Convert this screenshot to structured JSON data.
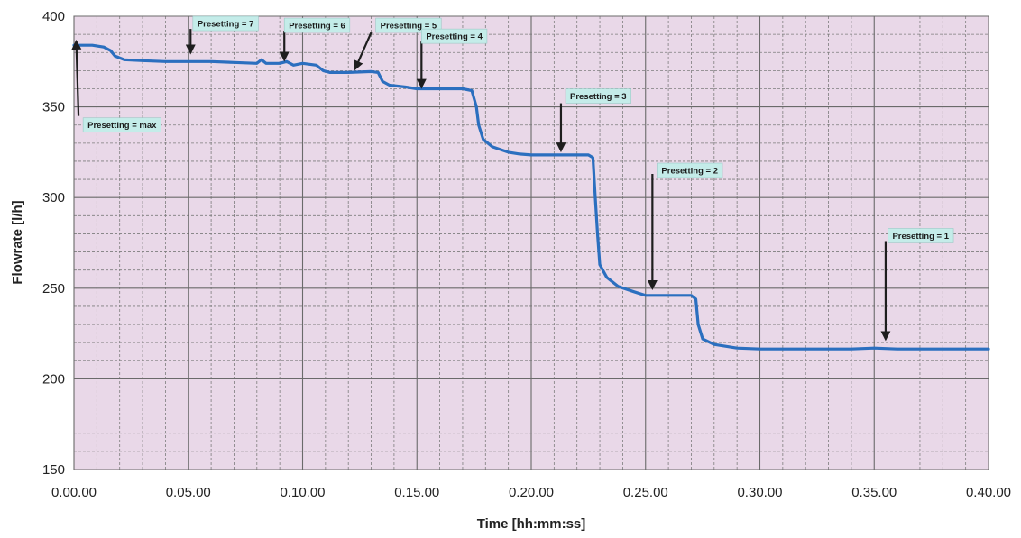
{
  "chart_data": {
    "type": "line",
    "title": "",
    "xlabel": "Time [hh:mm:ss]",
    "ylabel": "Flowrate [l/h]",
    "xlim": [
      0,
      40
    ],
    "ylim": [
      150,
      400
    ],
    "x_ticks": [
      {
        "value": 0,
        "label": "0.00.00"
      },
      {
        "value": 5,
        "label": "0.05.00"
      },
      {
        "value": 10,
        "label": "0.10.00"
      },
      {
        "value": 15,
        "label": "0.15.00"
      },
      {
        "value": 20,
        "label": "0.20.00"
      },
      {
        "value": 25,
        "label": "0.25.00"
      },
      {
        "value": 30,
        "label": "0.30.00"
      },
      {
        "value": 35,
        "label": "0.35.00"
      },
      {
        "value": 40,
        "label": "0.40.00"
      }
    ],
    "y_ticks": [
      {
        "value": 150,
        "label": "150"
      },
      {
        "value": 200,
        "label": "200"
      },
      {
        "value": 250,
        "label": "250"
      },
      {
        "value": 300,
        "label": "300"
      },
      {
        "value": 350,
        "label": "350"
      },
      {
        "value": 400,
        "label": "400"
      }
    ],
    "grid": true,
    "series": [
      {
        "color": "#2b6fbf",
        "points": [
          [
            0,
            384
          ],
          [
            0.8,
            384
          ],
          [
            1.3,
            383
          ],
          [
            1.6,
            381
          ],
          [
            1.8,
            378
          ],
          [
            2.2,
            376
          ],
          [
            3,
            375.5
          ],
          [
            4,
            375
          ],
          [
            5,
            375
          ],
          [
            6,
            375
          ],
          [
            7,
            374.5
          ],
          [
            8,
            374
          ],
          [
            8.2,
            376
          ],
          [
            8.4,
            374
          ],
          [
            9,
            374
          ],
          [
            9.3,
            375
          ],
          [
            9.6,
            373
          ],
          [
            10,
            374
          ],
          [
            10.6,
            373
          ],
          [
            10.9,
            370
          ],
          [
            11.2,
            369
          ],
          [
            12,
            369
          ],
          [
            13,
            369.5
          ],
          [
            13.3,
            369
          ],
          [
            13.5,
            364
          ],
          [
            13.8,
            362
          ],
          [
            14.5,
            361
          ],
          [
            15,
            360
          ],
          [
            16,
            360
          ],
          [
            17,
            360
          ],
          [
            17.4,
            359
          ],
          [
            17.6,
            350
          ],
          [
            17.7,
            340
          ],
          [
            17.9,
            332
          ],
          [
            18.3,
            328
          ],
          [
            19,
            325
          ],
          [
            19.5,
            324
          ],
          [
            20,
            323.5
          ],
          [
            21,
            323.5
          ],
          [
            22,
            323.5
          ],
          [
            22.5,
            323.5
          ],
          [
            22.7,
            322
          ],
          [
            22.8,
            300
          ],
          [
            22.9,
            280
          ],
          [
            23.0,
            263
          ],
          [
            23.3,
            256
          ],
          [
            23.8,
            251
          ],
          [
            24.5,
            248
          ],
          [
            25,
            246
          ],
          [
            26,
            246
          ],
          [
            27,
            246
          ],
          [
            27.2,
            244
          ],
          [
            27.3,
            230
          ],
          [
            27.5,
            222
          ],
          [
            28,
            219
          ],
          [
            29,
            217
          ],
          [
            30,
            216.5
          ],
          [
            32,
            216.5
          ],
          [
            34,
            216.5
          ],
          [
            35,
            217
          ],
          [
            36,
            216.5
          ],
          [
            38,
            216.5
          ],
          [
            40,
            216.5
          ]
        ]
      }
    ],
    "annotations": [
      {
        "label": "Presetting = max",
        "point": [
          0.1,
          386
        ],
        "box_at": [
          0.4,
          340
        ],
        "tail": [
          0.2,
          345
        ]
      },
      {
        "label": "Presetting = 7",
        "point": [
          5.1,
          380
        ],
        "box_at": [
          5.2,
          396
        ],
        "tail": [
          5.1,
          393
        ]
      },
      {
        "label": "Presetting = 6",
        "point": [
          9.2,
          376
        ],
        "box_at": [
          9.2,
          395
        ],
        "tail": [
          9.2,
          392
        ]
      },
      {
        "label": "Presetting = 5",
        "point": [
          12.3,
          371
        ],
        "box_at": [
          13.2,
          395
        ],
        "tail": [
          13.0,
          391
        ]
      },
      {
        "label": "Presetting = 4",
        "point": [
          15.2,
          361
        ],
        "box_at": [
          15.2,
          389
        ],
        "tail": [
          15.2,
          386
        ]
      },
      {
        "label": "Presetting = 3",
        "point": [
          21.3,
          326
        ],
        "box_at": [
          21.5,
          356
        ],
        "tail": [
          21.3,
          352
        ]
      },
      {
        "label": "Presetting = 2",
        "point": [
          25.3,
          250
        ],
        "box_at": [
          25.5,
          315
        ],
        "tail": [
          25.3,
          313
        ]
      },
      {
        "label": "Presetting = 1",
        "point": [
          35.5,
          222
        ],
        "box_at": [
          35.6,
          279
        ],
        "tail": [
          35.5,
          276
        ]
      }
    ]
  }
}
